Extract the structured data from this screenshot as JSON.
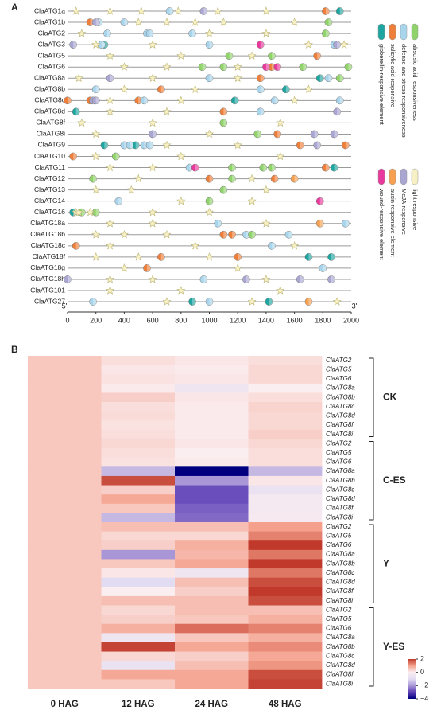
{
  "chart_data": [
    {
      "type": "cis-element-map",
      "panel": "A",
      "start_label": "5'",
      "end_label": "3'",
      "xlim": [
        0,
        2000
      ],
      "xticks": [
        0,
        200,
        400,
        600,
        800,
        1000,
        1200,
        1400,
        1600,
        1800,
        2000
      ],
      "categories": [
        "ClaATG1a",
        "ClaATG1b",
        "ClaATG2",
        "ClaATG3",
        "ClaATG5",
        "ClaATG6",
        "ClaATG8a",
        "ClaATG8b",
        "ClaATG8c",
        "ClaATG8d",
        "ClaATG8f",
        "ClaATG8i",
        "ClaATG9",
        "ClaATG10",
        "ClaATG11",
        "ClaATG12",
        "ClaATG13",
        "ClaATG14",
        "ClaATG16",
        "ClaATG18a",
        "ClaATG18b",
        "ClaATG18c",
        "ClaATG18f",
        "ClaATG18g",
        "ClaATG18h",
        "ClaATG101",
        "ClaATG27"
      ],
      "series": [
        {
          "name": "gibberellin-responsive element",
          "color": "#1fa5a0",
          "positions": [
            [
              1920
            ],
            [],
            [],
            [
              260
            ],
            [],
            [],
            [
              1780
            ],
            [
              1540
            ],
            [
              1180
            ],
            [
              60
            ],
            [],
            [],
            [
              260,
              480
            ],
            [],
            [
              1880
            ],
            [],
            [],
            [],
            [
              40
            ],
            [],
            [],
            [],
            [
              1700,
              1860
            ],
            [],
            [],
            [],
            [
              880,
              1420
            ]
          ]
        },
        {
          "name": "salicylic acid responsive",
          "color": "#ee7f3a",
          "positions": [
            [
              1820
            ],
            [
              160
            ],
            [],
            [],
            [
              1760
            ],
            [
              1440
            ],
            [
              1360
            ],
            [
              660
            ],
            [
              0,
              160,
              500
            ],
            [
              1100
            ],
            [],
            [
              1480
            ],
            [
              1640,
              1960
            ],
            [
              40
            ],
            [
              1820
            ],
            [
              1000,
              1460
            ],
            [],
            [],
            [],
            [],
            [
              1100,
              1160
            ],
            [
              60
            ],
            [
              660,
              1200
            ],
            [
              560
            ],
            [],
            [],
            []
          ]
        },
        {
          "name": "defense and stress responsiveness",
          "color": "#a8d4ec",
          "positions": [
            [
              720
            ],
            [
              220,
              400
            ],
            [
              280,
              560,
              580,
              880
            ],
            [
              240,
              1000,
              1880
            ],
            [],
            [],
            [
              1000,
              1840
            ],
            [
              200,
              1360
            ],
            [
              540,
              1460,
              1920
            ],
            [
              1360
            ],
            [],
            [],
            [
              400,
              440,
              540,
              580
            ],
            [],
            [
              860
            ],
            [],
            [],
            [
              360
            ],
            [],
            [
              1060,
              1960
            ],
            [
              1260,
              1560
            ],
            [
              1440
            ],
            [],
            [
              1800
            ],
            [
              960
            ],
            [],
            [
              180,
              1000
            ]
          ]
        },
        {
          "name": "abscisic acid responsiveness",
          "color": "#8fd36a",
          "positions": [
            [],
            [
              1840
            ],
            [
              1820
            ],
            [],
            [
              1140,
              1440
            ],
            [
              950,
              1100,
              1660,
              1980
            ],
            [
              1920
            ],
            [],
            [],
            [],
            [
              1100
            ],
            [
              1340
            ],
            [],
            [
              340
            ],
            [
              1160,
              1380,
              1440
            ],
            [
              180,
              1160
            ],
            [
              1100
            ],
            [
              1000
            ],
            [
              100,
              200
            ],
            [],
            [
              1300
            ],
            [],
            [],
            [],
            [],
            [],
            []
          ]
        },
        {
          "name": "wound-responsive element",
          "color": "#e8399c",
          "positions": [
            [],
            [],
            [],
            [
              1360
            ],
            [],
            [
              1400,
              1480
            ],
            [],
            [],
            [],
            [],
            [],
            [],
            [],
            [],
            [
              900
            ],
            [],
            [],
            [
              1780
            ],
            [],
            [],
            [],
            [],
            [],
            [],
            [],
            [],
            []
          ]
        },
        {
          "name": "auxin-responsive element",
          "color": "#f6a050",
          "positions": [
            [],
            [],
            [],
            [],
            [],
            [],
            [],
            [],
            [],
            [],
            [],
            [],
            [],
            [],
            [],
            [
              1600
            ],
            [],
            [],
            [],
            [
              1780
            ],
            [],
            [],
            [],
            [],
            [],
            [],
            [
              1700
            ]
          ]
        },
        {
          "name": "MeJA-responsive",
          "color": "#a9a6d2",
          "positions": [
            [
              960
            ],
            [
              200
            ],
            [],
            [
              40,
              1900
            ],
            [],
            [],
            [
              300
            ],
            [],
            [
              180,
              200
            ],
            [
              1900
            ],
            [],
            [
              600,
              1740,
              1880
            ],
            [
              1760
            ],
            [],
            [],
            [],
            [],
            [],
            [],
            [],
            [],
            [],
            [],
            [],
            [
              0,
              1260,
              1640,
              1860
            ],
            [],
            []
          ]
        },
        {
          "name": "light responsive",
          "color": "#f6f0c4",
          "positions": [
            [
              60,
              300,
              520,
              780,
              1060,
              1400
            ],
            [
              500,
              700,
              900,
              1100,
              1600
            ],
            [
              100,
              1000,
              1400
            ],
            [
              200,
              600,
              1700,
              1950
            ],
            [
              300,
              800,
              1300
            ],
            [
              400,
              700,
              1200
            ],
            [
              80,
              600,
              1200
            ],
            [
              400,
              900,
              1700
            ],
            [
              300,
              800,
              1600
            ],
            [
              300,
              700
            ],
            [
              100,
              600,
              1500
            ],
            [
              200,
              1000
            ],
            [
              700,
              1200
            ],
            [
              200,
              800,
              1500
            ],
            [
              300,
              600
            ],
            [
              500,
              1300
            ],
            [
              200,
              450,
              1400
            ],
            [
              800,
              1300
            ],
            [
              60,
              80,
              160,
              600,
              1000
            ],
            [
              300,
              600,
              1400
            ],
            [
              200,
              400,
              700
            ],
            [
              300,
              900,
              1600
            ],
            [
              200,
              500,
              1000
            ],
            [
              400,
              1200
            ],
            [
              300,
              600,
              1400
            ],
            [
              300,
              800,
              1500
            ],
            [
              700,
              1300,
              1900
            ]
          ]
        }
      ]
    },
    {
      "type": "heatmap",
      "panel": "B",
      "categories": [
        "ClaATG2",
        "ClaATG5",
        "ClaATG6",
        "ClaATG8a",
        "ClaATG8b",
        "ClaATG8c",
        "ClaATG8d",
        "ClaATG8f",
        "ClaATG8i",
        "ClaATG2",
        "ClaATG5",
        "ClaATG6",
        "ClaATG8a",
        "ClaATG8b",
        "ClaATG8c",
        "ClaATG8d",
        "ClaATG8f",
        "ClaATG8i",
        "ClaATG2",
        "ClaATG5",
        "ClaATG6",
        "ClaATG8a",
        "ClaATG8b",
        "ClaATG8c",
        "ClaATG8d",
        "ClaATG8f",
        "ClaATG8i",
        "ClaATG2",
        "ClaATG5",
        "ClaATG6",
        "ClaATG8a",
        "ClaATG8b",
        "ClaATG8c",
        "ClaATG8d",
        "ClaATG8f",
        "ClaATG8i"
      ],
      "groups": [
        "CK",
        "C-ES",
        "Y",
        "Y-ES"
      ],
      "zlim": [
        -4,
        2
      ],
      "colorbar_ticks": [
        2,
        0,
        {
          "value": -2,
          "label": "−2"
        },
        {
          "value": -4,
          "label": "−4"
        }
      ],
      "colorscale": [
        [
          -4,
          "#00007f"
        ],
        [
          -3,
          "#5a3cb4"
        ],
        [
          -2,
          "#a896d6"
        ],
        [
          -1,
          "#e2dcf2"
        ],
        [
          0,
          "#fbeef0"
        ],
        [
          1,
          "#f4a08c"
        ],
        [
          2,
          "#c0392b"
        ]
      ],
      "series": [
        {
          "name": "0 HAG",
          "values": [
            0.5,
            0.5,
            0.5,
            0.5,
            0.5,
            0.5,
            0.5,
            0.5,
            0.5,
            0.5,
            0.5,
            0.5,
            0.5,
            0.5,
            0.5,
            0.5,
            0.5,
            0.5,
            0.5,
            0.5,
            0.5,
            0.5,
            0.5,
            0.5,
            0.5,
            0.5,
            0.5,
            0.5,
            0.5,
            0.5,
            0.5,
            0.5,
            0.5,
            0.5,
            0.5,
            0.5
          ]
        },
        {
          "name": "12 HAG",
          "values": [
            0.2,
            0.1,
            0.15,
            0.05,
            0.4,
            0.2,
            0.25,
            0.15,
            0.2,
            0.3,
            0.2,
            0.15,
            -1.5,
            1.8,
            0.4,
            0.9,
            0.5,
            -1.5,
            0.6,
            0.3,
            0.4,
            -2,
            0.5,
            0.1,
            -1,
            0,
            0.6,
            0.3,
            0.4,
            0.8,
            -0.5,
            1.9,
            0.3,
            -0.7,
            0.9,
            0.5
          ]
        },
        {
          "name": "24 HAG",
          "values": [
            0.1,
            0.05,
            0.1,
            -0.5,
            0.1,
            0.05,
            0.05,
            0.05,
            0.05,
            0.1,
            0,
            0.05,
            -4,
            -2,
            -2.8,
            -2.8,
            -2.6,
            -2.5,
            0.6,
            0.3,
            0.8,
            0.7,
            0.9,
            -0.5,
            0.6,
            0.4,
            0.6,
            0.6,
            0.5,
            1.5,
            0.5,
            0.9,
            0.4,
            0.6,
            0.9,
            0.9
          ]
        },
        {
          "name": "48 HAG",
          "values": [
            0.2,
            0.3,
            0.3,
            0,
            0.2,
            0.35,
            0.3,
            0.3,
            0.4,
            0.3,
            0.2,
            0.2,
            -1.5,
            0.1,
            -0.7,
            -0.3,
            -0.3,
            -0.2,
            1,
            1.3,
            2,
            1.4,
            2,
            1.4,
            1.8,
            2,
            1.8,
            0.6,
            0.8,
            1.3,
            0.8,
            1.2,
            0.9,
            1.1,
            1.8,
            1.9
          ]
        }
      ]
    }
  ]
}
